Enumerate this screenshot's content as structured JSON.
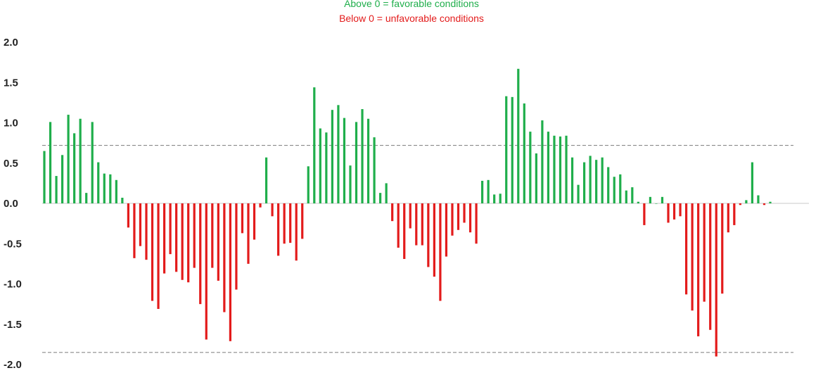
{
  "header": {
    "subtitle_positive": "Above 0 = favorable conditions",
    "subtitle_negative": "Below 0 = unfavorable conditions"
  },
  "colors": {
    "positive": "#1fae4b",
    "negative": "#e31b1b",
    "axis": "#c8c8c8",
    "reference_line": "#8a8a8a"
  },
  "chart_data": {
    "type": "bar",
    "ylim": [
      -2.0,
      2.0
    ],
    "yticks": [
      "2.0",
      "1.5",
      "1.0",
      "0.5",
      "0.0",
      "-0.5",
      "-1.0",
      "-1.5",
      "-2.0"
    ],
    "ytick_values": [
      2.0,
      1.5,
      1.0,
      0.5,
      0.0,
      -0.5,
      -1.0,
      -1.5,
      -2.0
    ],
    "reference_lines": [
      0.72,
      -1.85
    ],
    "grid": false,
    "values": [
      0.65,
      1.01,
      0.34,
      0.6,
      1.1,
      0.87,
      1.05,
      0.13,
      1.01,
      0.51,
      0.37,
      0.36,
      0.29,
      0.07,
      -0.3,
      -0.68,
      -0.53,
      -0.7,
      -1.21,
      -1.31,
      -0.87,
      -0.63,
      -0.85,
      -0.95,
      -0.98,
      -0.8,
      -1.25,
      -1.69,
      -0.8,
      -0.96,
      -1.35,
      -1.71,
      -1.07,
      -0.37,
      -0.75,
      -0.45,
      -0.05,
      0.57,
      -0.16,
      -0.65,
      -0.5,
      -0.49,
      -0.71,
      -0.44,
      0.46,
      1.44,
      0.93,
      0.88,
      1.16,
      1.22,
      1.06,
      0.47,
      1.01,
      1.17,
      1.05,
      0.82,
      0.13,
      0.25,
      -0.22,
      -0.55,
      -0.69,
      -0.31,
      -0.52,
      -0.52,
      -0.79,
      -0.91,
      -1.21,
      -0.66,
      -0.4,
      -0.33,
      -0.24,
      -0.36,
      -0.5,
      0.28,
      0.29,
      0.11,
      0.12,
      1.33,
      1.32,
      1.67,
      1.24,
      0.89,
      0.62,
      1.03,
      0.89,
      0.84,
      0.83,
      0.84,
      0.57,
      0.23,
      0.51,
      0.59,
      0.54,
      0.57,
      0.45,
      0.33,
      0.36,
      0.16,
      0.2,
      0.02,
      -0.27,
      0.08,
      0.0,
      0.08,
      -0.24,
      -0.2,
      -0.16,
      -1.13,
      -1.33,
      -1.65,
      -1.22,
      -1.57,
      -1.9,
      -1.12,
      -0.36,
      -0.27,
      -0.02,
      0.04,
      0.51,
      0.1,
      -0.02,
      0.02
    ]
  }
}
